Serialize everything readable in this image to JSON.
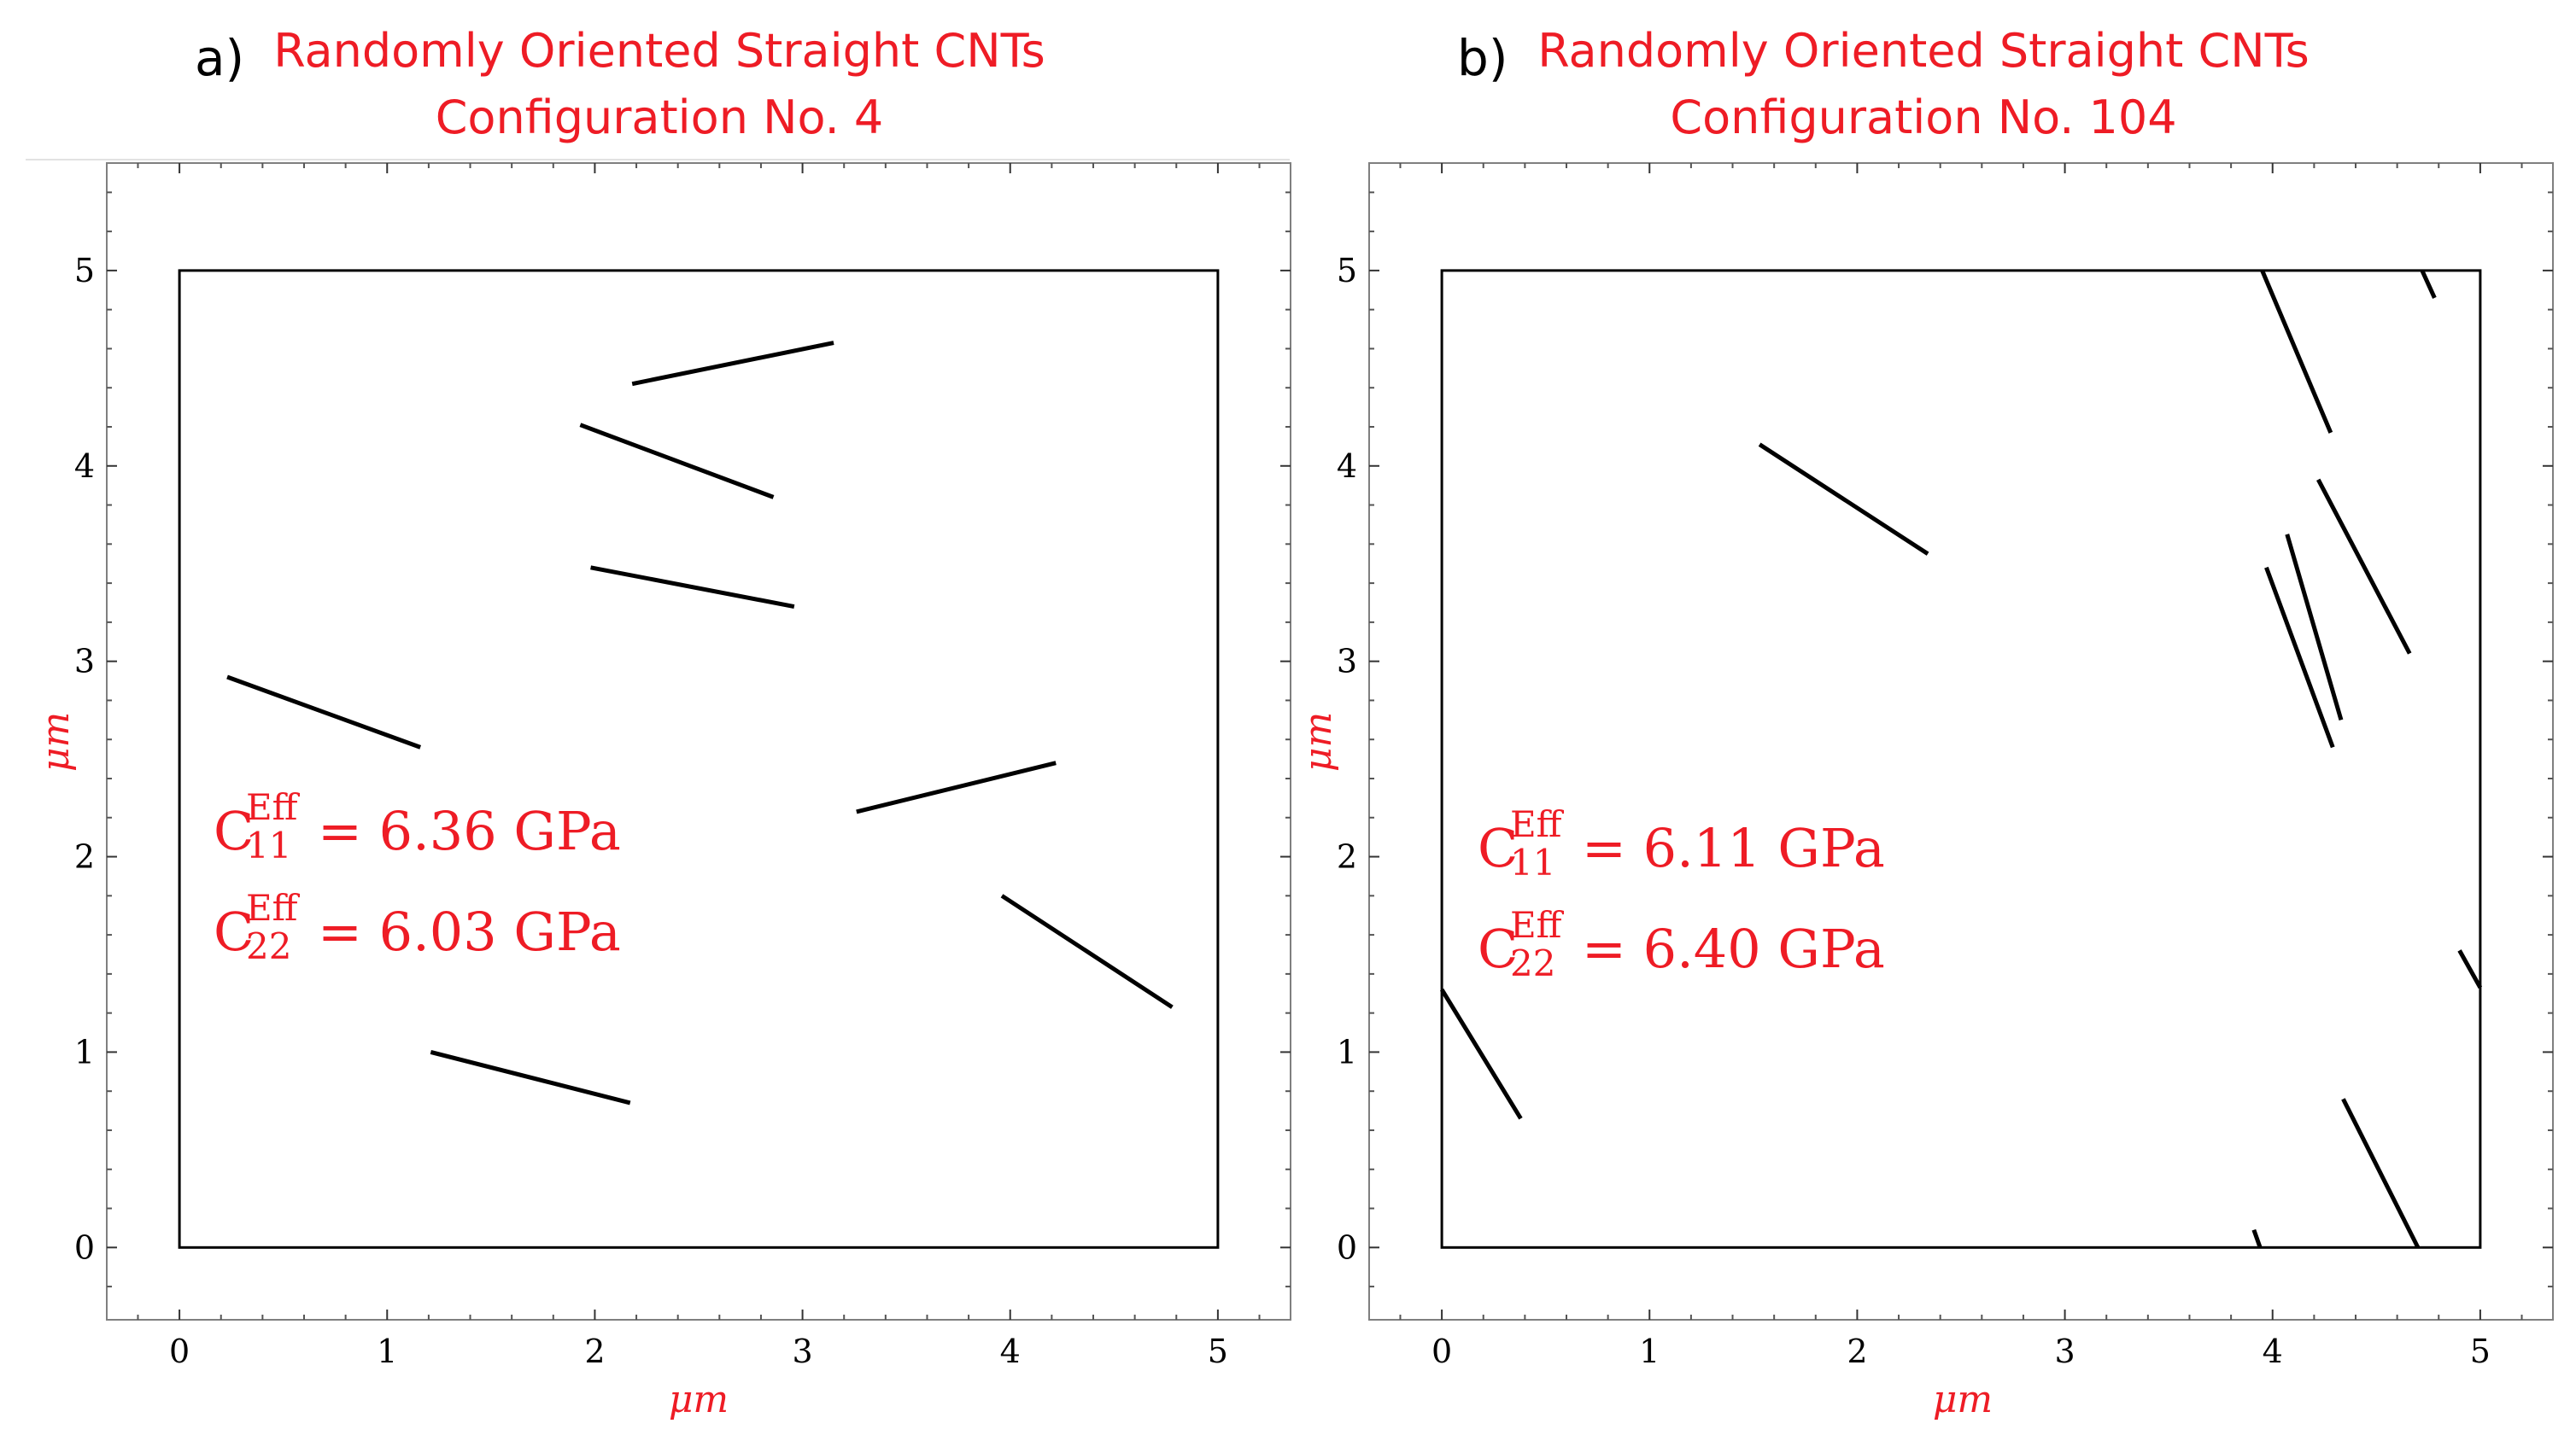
{
  "chart_data": [
    {
      "type": "line",
      "panel_label": "a)",
      "title": "Randomly Oriented Straight CNTs",
      "subtitle": "Configuration No. 4",
      "xlabel": "μm",
      "ylabel": "μm",
      "xlim": [
        -0.35,
        5.35
      ],
      "ylim": [
        -0.37,
        5.55
      ],
      "ticks": [
        0,
        1,
        2,
        3,
        4,
        5
      ],
      "tick_labels": [
        "0",
        "1",
        "2",
        "3",
        "4",
        "5"
      ],
      "domain_box": [
        [
          0,
          0
        ],
        [
          5,
          5
        ]
      ],
      "segments": [
        [
          [
            2.18,
            4.42
          ],
          [
            3.15,
            4.63
          ]
        ],
        [
          [
            1.93,
            4.21
          ],
          [
            2.86,
            3.84
          ]
        ],
        [
          [
            1.98,
            3.48
          ],
          [
            2.96,
            3.28
          ]
        ],
        [
          [
            0.23,
            2.92
          ],
          [
            1.16,
            2.56
          ]
        ],
        [
          [
            3.26,
            2.23
          ],
          [
            4.22,
            2.48
          ]
        ],
        [
          [
            3.96,
            1.8
          ],
          [
            4.78,
            1.23
          ]
        ],
        [
          [
            1.21,
            1.0
          ],
          [
            2.17,
            0.74
          ]
        ]
      ],
      "annotations": [
        {
          "base": "C",
          "sub": "11",
          "sup": "Eff",
          "value": "= 6.36 GPa"
        },
        {
          "base": "C",
          "sub": "22",
          "sup": "Eff",
          "value": "= 6.03 GPa"
        }
      ]
    },
    {
      "type": "line",
      "panel_label": "b)",
      "title": "Randomly Oriented Straight CNTs",
      "subtitle": "Configuration No. 104",
      "xlabel": "μm",
      "ylabel": "μm",
      "xlim": [
        -0.35,
        5.35
      ],
      "ylim": [
        -0.37,
        5.55
      ],
      "ticks": [
        0,
        1,
        2,
        3,
        4,
        5
      ],
      "tick_labels": [
        "0",
        "1",
        "2",
        "3",
        "4",
        "5"
      ],
      "domain_box": [
        [
          0,
          0
        ],
        [
          5,
          5
        ]
      ],
      "segments": [
        [
          [
            3.95,
            5.0
          ],
          [
            4.28,
            4.17
          ]
        ],
        [
          [
            4.72,
            5.0
          ],
          [
            4.78,
            4.86
          ]
        ],
        [
          [
            1.53,
            4.11
          ],
          [
            2.34,
            3.55
          ]
        ],
        [
          [
            4.22,
            3.93
          ],
          [
            4.66,
            3.04
          ]
        ],
        [
          [
            4.07,
            3.65
          ],
          [
            4.33,
            2.7
          ]
        ],
        [
          [
            3.97,
            3.48
          ],
          [
            4.29,
            2.56
          ]
        ],
        [
          [
            0.0,
            1.32
          ],
          [
            0.38,
            0.66
          ]
        ],
        [
          [
            4.9,
            1.52
          ],
          [
            5.0,
            1.33
          ]
        ],
        [
          [
            4.34,
            0.76
          ],
          [
            4.7,
            0.0
          ]
        ],
        [
          [
            3.91,
            0.09
          ],
          [
            3.94,
            0.0
          ]
        ]
      ],
      "annotations": [
        {
          "base": "C",
          "sub": "11",
          "sup": "Eff",
          "value": "= 6.11 GPa"
        },
        {
          "base": "C",
          "sub": "22",
          "sup": "Eff",
          "value": "= 6.40 GPa"
        }
      ]
    }
  ],
  "colors": {
    "accent": "#ee1c25",
    "ink": "#000000",
    "frame": "#7f7f7f"
  }
}
